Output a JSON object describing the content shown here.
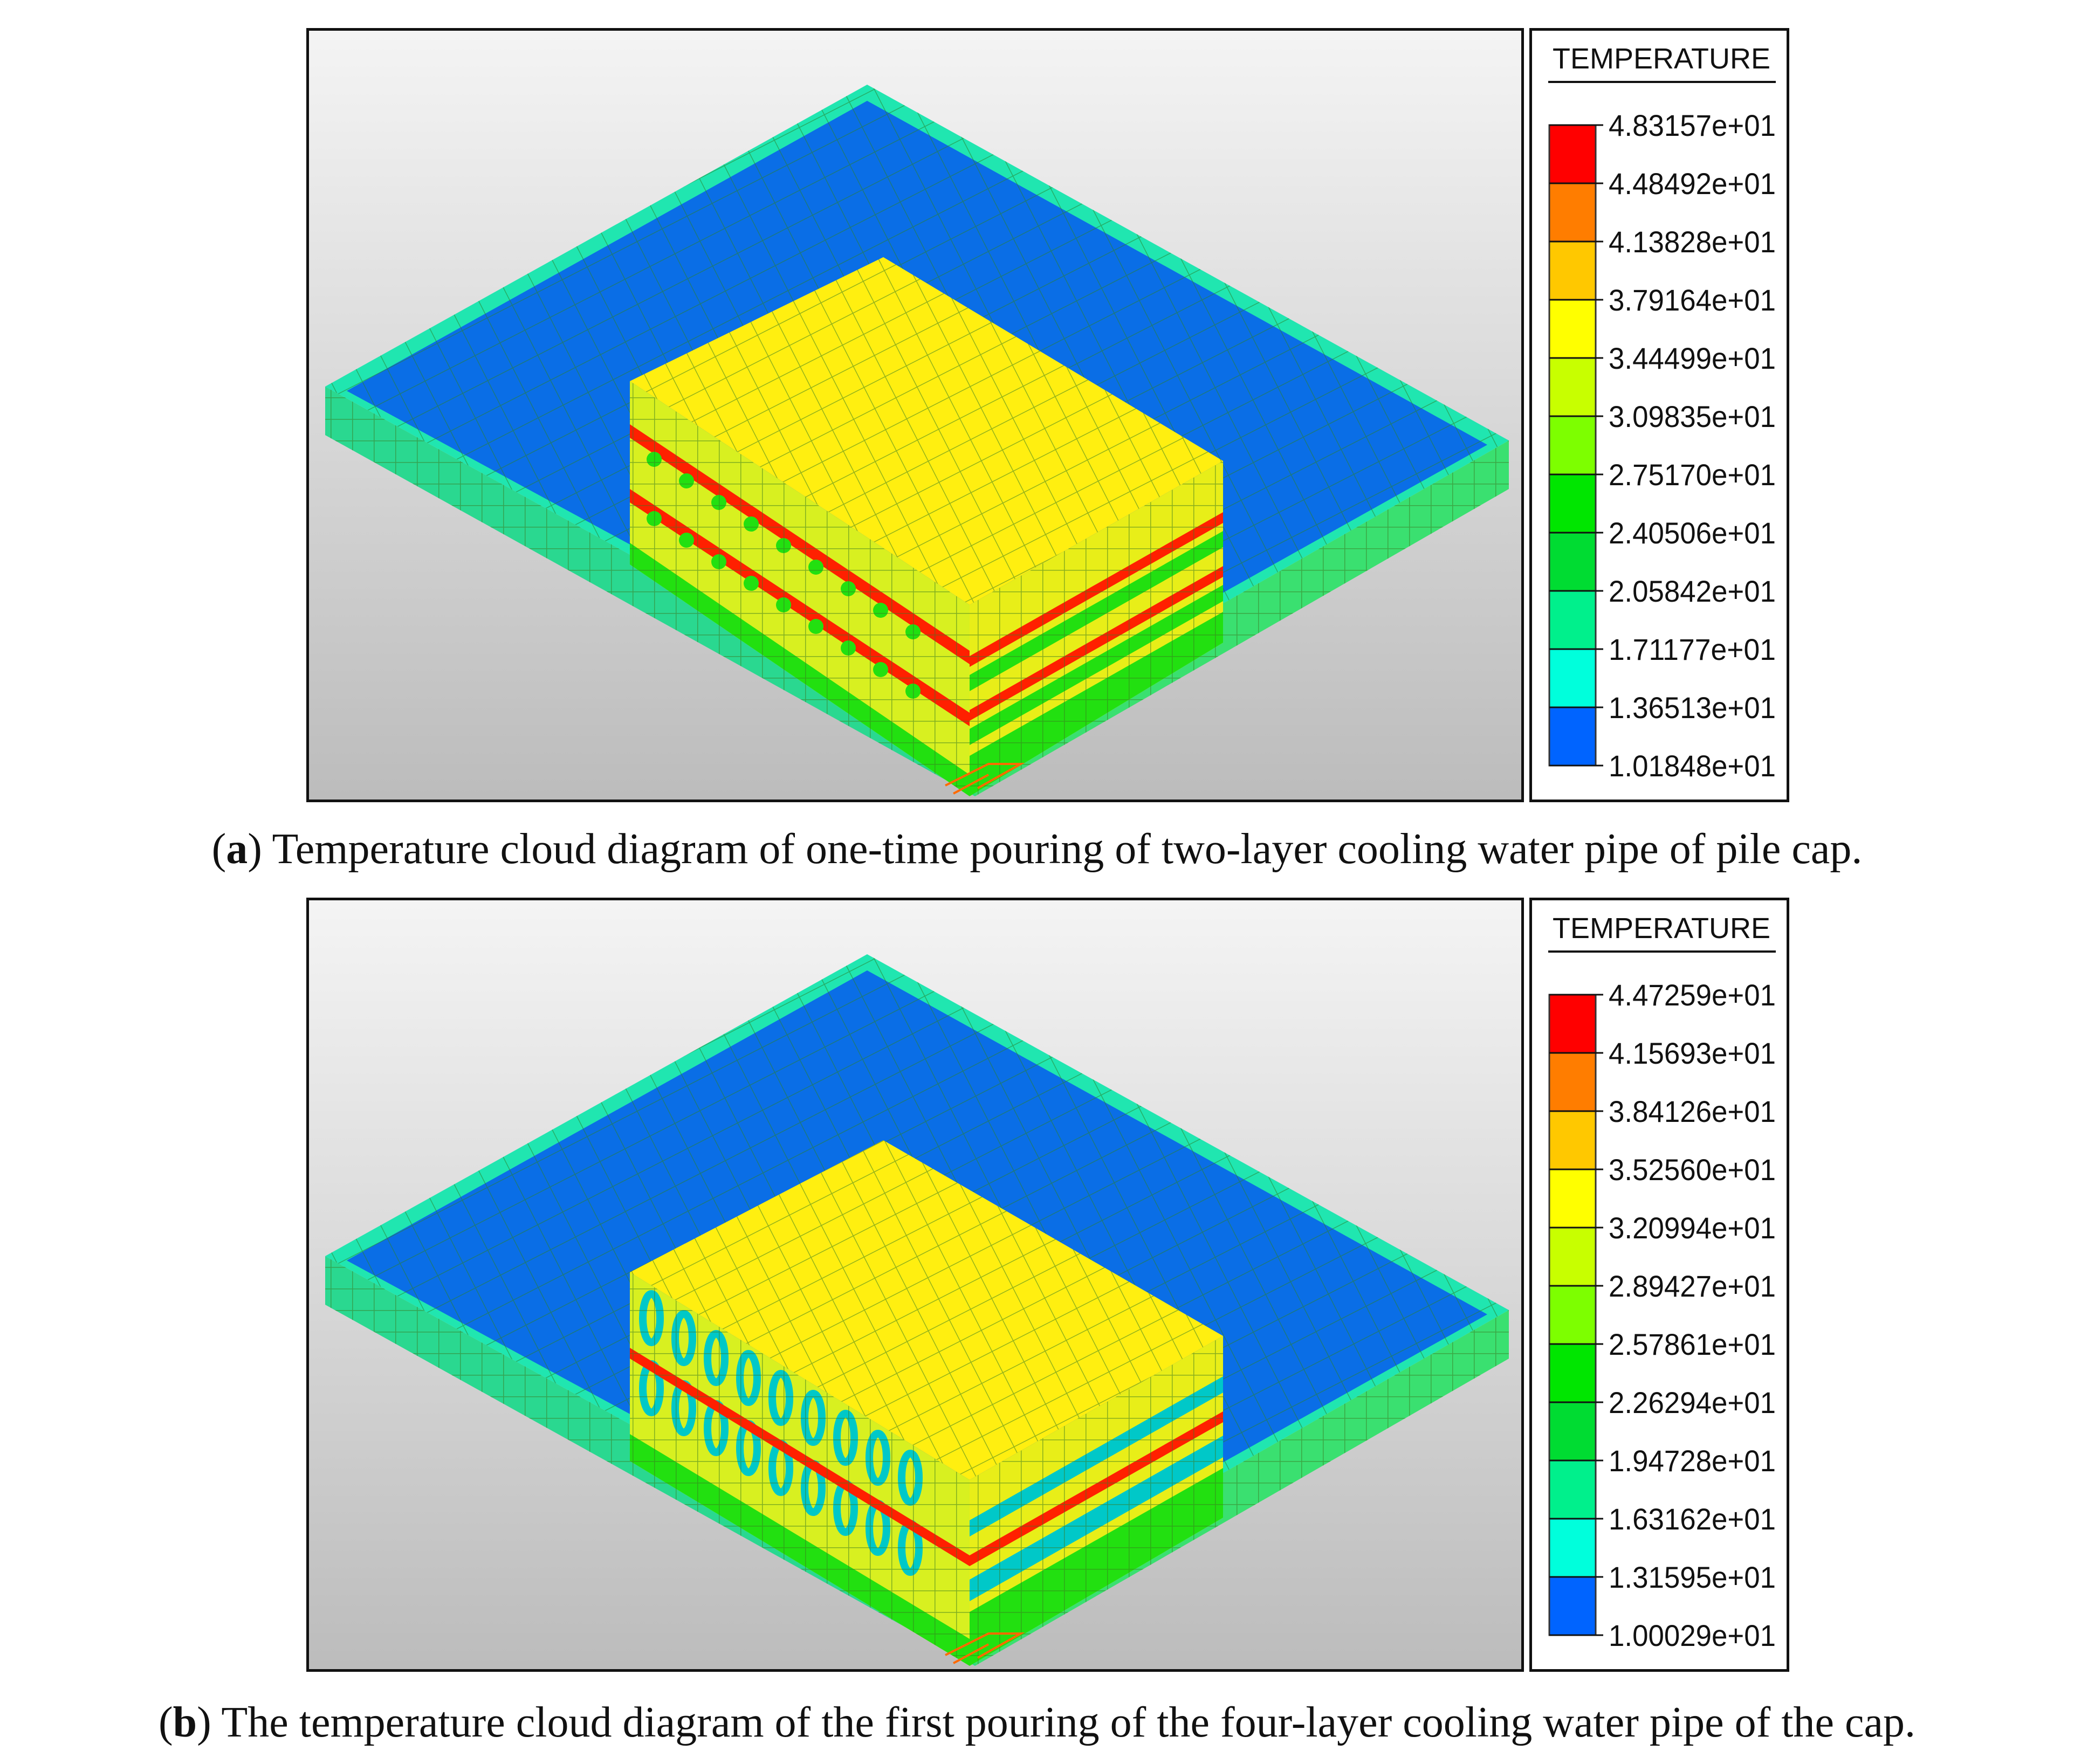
{
  "panels": [
    {
      "id": "a",
      "legend_title": "TEMPERATURE",
      "legend_labels": [
        "4.83157e+01",
        "4.48492e+01",
        "4.13828e+01",
        "3.79164e+01",
        "3.44499e+01",
        "3.09835e+01",
        "2.75170e+01",
        "2.40506e+01",
        "2.05842e+01",
        "1.71177e+01",
        "1.36513e+01",
        "1.01848e+01"
      ],
      "caption_prefix": "(",
      "caption_letter": "a",
      "caption_text": ") Temperature cloud diagram of one-time pouring of two-layer cooling water pipe of pile cap."
    },
    {
      "id": "b",
      "legend_title": "TEMPERATURE",
      "legend_labels": [
        "4.47259e+01",
        "4.15693e+01",
        "3.84126e+01",
        "3.52560e+01",
        "3.20994e+01",
        "2.89427e+01",
        "2.57861e+01",
        "2.26294e+01",
        "1.94728e+01",
        "1.63162e+01",
        "1.31595e+01",
        "1.00029e+01"
      ],
      "caption_prefix": "(",
      "caption_letter": "b",
      "caption_text": ") The temperature cloud diagram of the first pouring of the four-layer cooling water pipe of the cap."
    }
  ],
  "legend_colors": [
    "#ff0000",
    "#ff7d00",
    "#ffc800",
    "#ffff00",
    "#c8ff00",
    "#7dff00",
    "#00e600",
    "#00dc32",
    "#00f08c",
    "#00ffdc",
    "#0064ff"
  ],
  "model_colors": {
    "slab_top": "#0a6ee6",
    "slab_edge": "#20e6b0",
    "block_top": "#ffef10",
    "block_front": "#d8f020",
    "block_side": "#e8ee18",
    "hot": "#ff2000",
    "green": "#22e010"
  }
}
